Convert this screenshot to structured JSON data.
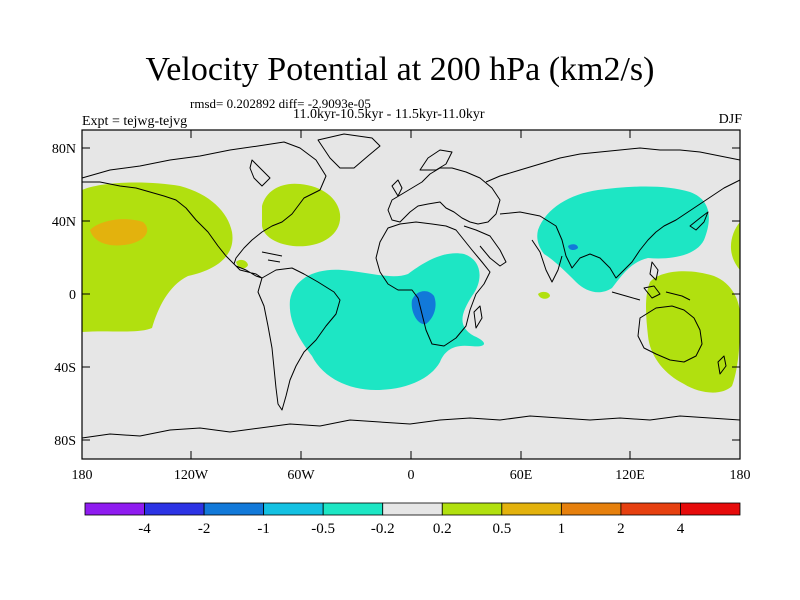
{
  "header": {
    "title": "Velocity Potential at 200 hPa (km2/s)",
    "rmsd_line": "rmsd= 0.202892 diff= -2.9093e-05",
    "period_line": "11.0kyr-10.5kyr - 11.5kyr-11.0kyr",
    "experiment": "Expt = tejwg-tejvg",
    "season": "DJF"
  },
  "axes": {
    "y_ticks": [
      "80N",
      "40N",
      "0",
      "40S",
      "80S"
    ],
    "x_ticks": [
      "180",
      "120W",
      "60W",
      "0",
      "60E",
      "120E",
      "180"
    ]
  },
  "colorbar": {
    "labels": [
      "-4",
      "-2",
      "-1",
      "-0.5",
      "-0.2",
      "0.2",
      "0.5",
      "1",
      "2",
      "4"
    ],
    "colors": [
      "#8f1cf0",
      "#2c33e4",
      "#1279d9",
      "#14c1e2",
      "#1de6c4",
      "#e6e6e6",
      "#b1e00f",
      "#e3b20d",
      "#e6800d",
      "#e64010",
      "#e60b0b"
    ]
  },
  "colors": {
    "ocean_background": "#e6e6e6",
    "coastline": "#000000",
    "positive_shade": "#b1e00f",
    "negative_shade": "#1de6c4"
  }
}
